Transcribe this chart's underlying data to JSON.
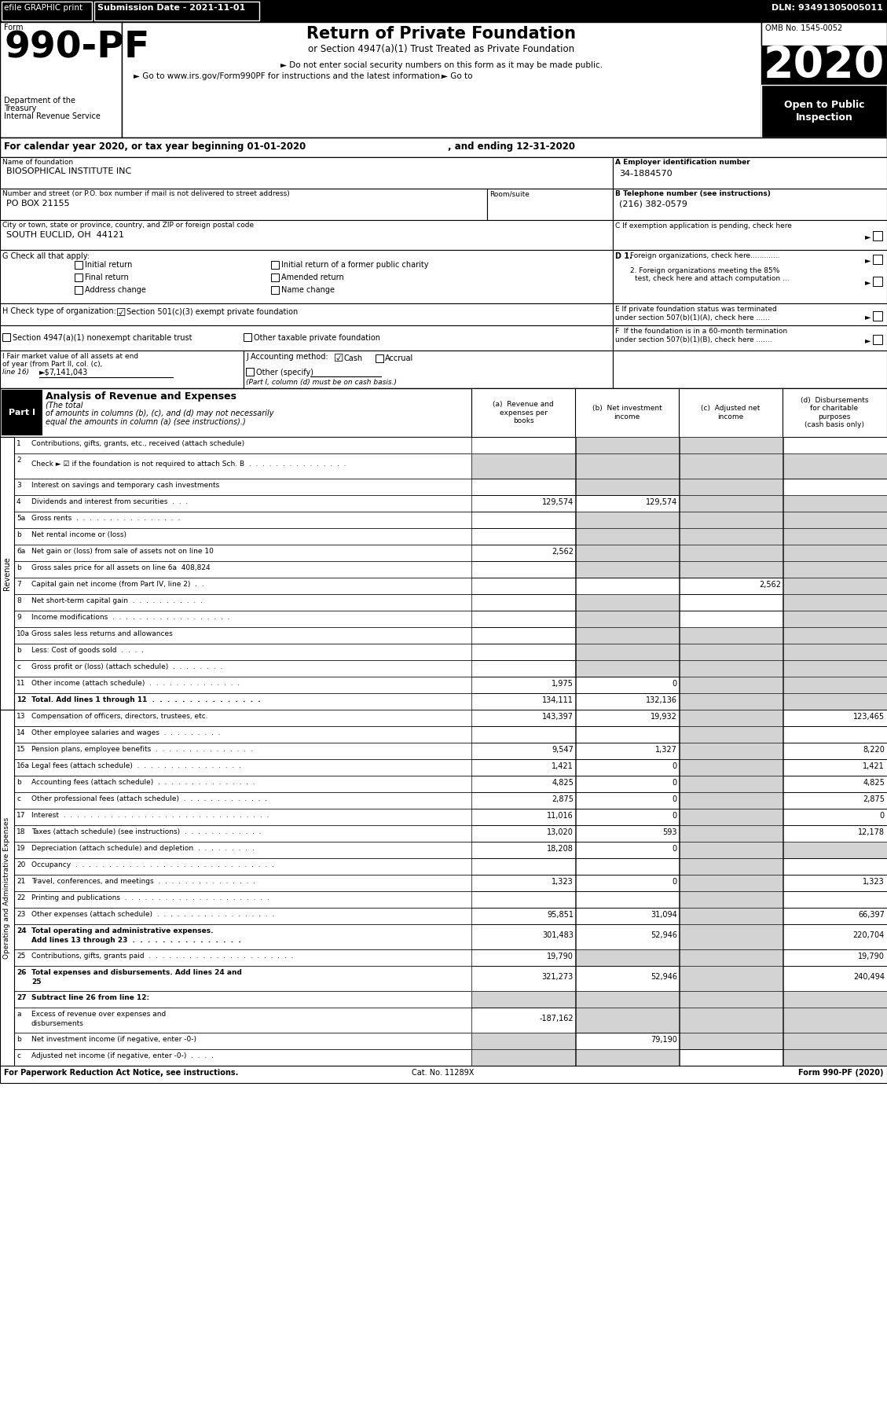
{
  "title": "Return of Private Foundation",
  "subtitle": "or Section 4947(a)(1) Trust Treated as Private Foundation",
  "form_number": "990-PF",
  "year": "2020",
  "omb": "OMB No. 1545-0052",
  "dln": "DLN: 93491305005011",
  "submission_date": "Submission Date - 2021-11-01",
  "efile_text": "efile GRAPHIC print",
  "dept1": "Department of the",
  "dept2": "Treasury",
  "dept3": "Internal Revenue Service",
  "bullet1": "► Do not enter social security numbers on this form as it may be made public.",
  "bullet2": "► Go to www.irs.gov/Form990PF for instructions and the latest information.",
  "url_text": "www.irs.gov/Form990PF",
  "open_text": "Open to Public\nInspection",
  "cal_year": "For calendar year 2020, or tax year beginning 01-01-2020",
  "cal_ending": ", and ending 12-31-2020",
  "foundation_name_label": "Name of foundation",
  "foundation_name": "BIOSOPHICAL INSTITUTE INC",
  "ein_label": "A Employer identification number",
  "ein": "34-1884570",
  "address_label": "Number and street (or P.O. box number if mail is not delivered to street address)",
  "address": "PO BOX 21155",
  "room_label": "Room/suite",
  "phone_label": "B Telephone number (see instructions)",
  "phone": "(216) 382-0579",
  "city_label": "City or town, state or province, country, and ZIP or foreign postal code",
  "city": "SOUTH EUCLID, OH  44121",
  "h_opt1": "Section 501(c)(3) exempt private foundation",
  "h_opt2": "Section 4947(a)(1) nonexempt charitable trust",
  "h_opt3": "Other taxable private foundation",
  "i_value": "7,141,043",
  "j_note": "(Part I, column (d) must be on cash basis.)",
  "f_label": "F  If the foundation is in a 60-month termination under section 507(b)(1)(B), check here .......",
  "footer_left": "For Paperwork Reduction Act Notice, see instructions.",
  "footer_cat": "Cat. No. 11289X",
  "footer_right": "Form 990-PF (2020)",
  "shade_gray": "#d3d3d3",
  "rows": [
    {
      "num": "1",
      "label": "Contributions, gifts, grants, etc., received (attach schedule)",
      "a": "",
      "b": "",
      "c": "",
      "d": "",
      "shade_b": true,
      "shade_c": true
    },
    {
      "num": "2",
      "label": "Check ► ☑ if the foundation is not required to attach Sch. B  .  .  .  .  .  .  .  .  .  .  .  .  .  .  .",
      "a": "",
      "b": "",
      "c": "",
      "d": "",
      "shade_a": true,
      "shade_b": true,
      "shade_c": true,
      "shade_d": true,
      "tall": true
    },
    {
      "num": "3",
      "label": "Interest on savings and temporary cash investments",
      "a": "",
      "b": "",
      "c": "",
      "d": "",
      "shade_b": true,
      "shade_c": true
    },
    {
      "num": "4",
      "label": "Dividends and interest from securities  .  .  .",
      "a": "129,574",
      "b": "129,574",
      "c": "",
      "d": "",
      "shade_c": true,
      "shade_d": true
    },
    {
      "num": "5a",
      "label": "Gross rents  .  .  .  .  .  .  .  .  .  .  .  .  .  .  .  .",
      "a": "",
      "b": "",
      "c": "",
      "d": "",
      "shade_b": true,
      "shade_c": true,
      "shade_d": true
    },
    {
      "num": "b",
      "label": "Net rental income or (loss)",
      "a": "",
      "b": "",
      "c": "",
      "d": "",
      "shade_b": true,
      "shade_c": true,
      "shade_d": true,
      "line_a": true
    },
    {
      "num": "6a",
      "label": "Net gain or (loss) from sale of assets not on line 10",
      "a": "2,562",
      "b": "",
      "c": "",
      "d": "",
      "shade_b": true,
      "shade_c": true,
      "shade_d": true
    },
    {
      "num": "b",
      "label": "Gross sales price for all assets on line 6a  408,824",
      "a": "",
      "b": "",
      "c": "",
      "d": "",
      "shade_b": true,
      "shade_c": true,
      "shade_d": true
    },
    {
      "num": "7",
      "label": "Capital gain net income (from Part IV, line 2)  .  .",
      "a": "",
      "b": "",
      "c": "2,562",
      "d": "",
      "shade_d": true
    },
    {
      "num": "8",
      "label": "Net short-term capital gain  .  .  .  .  .  .  .  .  .  .  .",
      "a": "",
      "b": "",
      "c": "",
      "d": "",
      "shade_b": true,
      "shade_d": true
    },
    {
      "num": "9",
      "label": "Income modifications  .  .  .  .  .  .  .  .  .  .  .  .  .  .  .  .  .  .",
      "a": "",
      "b": "",
      "c": "",
      "d": "",
      "shade_b": true,
      "shade_d": true
    },
    {
      "num": "10a",
      "label": "Gross sales less returns and allowances",
      "a": "",
      "b": "",
      "c": "",
      "d": "",
      "shade_b": true,
      "shade_c": true,
      "shade_d": true,
      "line_a": true
    },
    {
      "num": "b",
      "label": "Less: Cost of goods sold  .  .  .  .",
      "a": "",
      "b": "",
      "c": "",
      "d": "",
      "shade_b": true,
      "shade_c": true,
      "shade_d": true,
      "line_a": true
    },
    {
      "num": "c",
      "label": "Gross profit or (loss) (attach schedule)  .  .  .  .  .  .  .  .",
      "a": "",
      "b": "",
      "c": "",
      "d": "",
      "shade_b": true,
      "shade_c": true,
      "shade_d": true
    },
    {
      "num": "11",
      "label": "Other income (attach schedule)  .  .  .  .  .  .  .  .  .  .  .  .  .  .",
      "a": "1,975",
      "b": "0",
      "c": "",
      "d": "",
      "shade_c": true,
      "shade_d": true
    },
    {
      "num": "12",
      "label": "Total. Add lines 1 through 11  .  .  .  .  .  .  .  .  .  .  .  .  .  .  .",
      "a": "134,111",
      "b": "132,136",
      "c": "",
      "d": "",
      "bold": true,
      "shade_c": true,
      "shade_d": true
    },
    {
      "num": "13",
      "label": "Compensation of officers, directors, trustees, etc.",
      "a": "143,397",
      "b": "19,932",
      "c": "",
      "d": "123,465",
      "shade_c": true
    },
    {
      "num": "14",
      "label": "Other employee salaries and wages  .  .  .  .  .  .  .  .  .",
      "a": "",
      "b": "",
      "c": "",
      "d": "",
      "shade_c": true
    },
    {
      "num": "15",
      "label": "Pension plans, employee benefits  .  .  .  .  .  .  .  .  .  .  .  .  .  .  .",
      "a": "9,547",
      "b": "1,327",
      "c": "",
      "d": "8,220",
      "shade_c": true
    },
    {
      "num": "16a",
      "label": "Legal fees (attach schedule)  .  .  .  .  .  .  .  .  .  .  .  .  .  .  .  .",
      "a": "1,421",
      "b": "0",
      "c": "",
      "d": "1,421",
      "shade_c": true
    },
    {
      "num": "b",
      "label": "Accounting fees (attach schedule)  .  .  .  .  .  .  .  .  .  .  .  .  .  .  .",
      "a": "4,825",
      "b": "0",
      "c": "",
      "d": "4,825",
      "shade_c": true
    },
    {
      "num": "c",
      "label": "Other professional fees (attach schedule)  .  .  .  .  .  .  .  .  .  .  .  .  .",
      "a": "2,875",
      "b": "0",
      "c": "",
      "d": "2,875",
      "shade_c": true
    },
    {
      "num": "17",
      "label": "Interest  .  .  .  .  .  .  .  .  .  .  .  .  .  .  .  .  .  .  .  .  .  .  .  .  .  .  .  .  .  .  .",
      "a": "11,016",
      "b": "0",
      "c": "",
      "d": "0",
      "shade_c": true
    },
    {
      "num": "18",
      "label": "Taxes (attach schedule) (see instructions)  .  .  .  .  .  .  .  .  .  .  .  .",
      "a": "13,020",
      "b": "593",
      "c": "",
      "d": "12,178",
      "shade_c": true
    },
    {
      "num": "19",
      "label": "Depreciation (attach schedule) and depletion  .  .  .  .  .  .  .  .  .",
      "a": "18,208",
      "b": "0",
      "c": "",
      "d": "",
      "shade_c": true,
      "shade_d": true
    },
    {
      "num": "20",
      "label": "Occupancy  .  .  .  .  .  .  .  .  .  .  .  .  .  .  .  .  .  .  .  .  .  .  .  .  .  .  .  .  .  .",
      "a": "",
      "b": "",
      "c": "",
      "d": "",
      "shade_c": true
    },
    {
      "num": "21",
      "label": "Travel, conferences, and meetings  .  .  .  .  .  .  .  .  .  .  .  .  .  .  .",
      "a": "1,323",
      "b": "0",
      "c": "",
      "d": "1,323",
      "shade_c": true
    },
    {
      "num": "22",
      "label": "Printing and publications  .  .  .  .  .  .  .  .  .  .  .  .  .  .  .  .  .  .  .  .  .  .",
      "a": "",
      "b": "",
      "c": "",
      "d": "",
      "shade_c": true
    },
    {
      "num": "23",
      "label": "Other expenses (attach schedule)  .  .  .  .  .  .  .  .  .  .  .  .  .  .  .  .  .  .",
      "a": "95,851",
      "b": "31,094",
      "c": "",
      "d": "66,397",
      "shade_c": true
    },
    {
      "num": "24",
      "label": "Total operating and administrative expenses.\nAdd lines 13 through 23  .  .  .  .  .  .  .  .  .  .  .  .  .  .  .",
      "a": "301,483",
      "b": "52,946",
      "c": "",
      "d": "220,704",
      "bold": true,
      "shade_c": true,
      "tall": true
    },
    {
      "num": "25",
      "label": "Contributions, gifts, grants paid  .  .  .  .  .  .  .  .  .  .  .  .  .  .  .  .  .  .  .  .  .  .",
      "a": "19,790",
      "b": "",
      "c": "",
      "d": "19,790",
      "shade_b": true,
      "shade_c": true
    },
    {
      "num": "26",
      "label": "Total expenses and disbursements. Add lines 24 and\n25",
      "a": "321,273",
      "b": "52,946",
      "c": "",
      "d": "240,494",
      "bold": true,
      "shade_c": true,
      "tall": true
    },
    {
      "num": "27",
      "label": "Subtract line 26 from line 12:",
      "a": "",
      "b": "",
      "c": "",
      "d": "",
      "bold": true,
      "shade_a": true,
      "shade_b": true,
      "shade_c": true,
      "shade_d": true
    },
    {
      "num": "a",
      "label": "Excess of revenue over expenses and\ndisbursements",
      "a": "-187,162",
      "b": "",
      "c": "",
      "d": "",
      "shade_b": true,
      "shade_c": true,
      "shade_d": true,
      "tall": true
    },
    {
      "num": "b",
      "label": "Net investment income (if negative, enter -0-)",
      "a": "",
      "b": "79,190",
      "c": "",
      "d": "",
      "shade_a": true,
      "shade_c": true,
      "shade_d": true
    },
    {
      "num": "c",
      "label": "Adjusted net income (if negative, enter -0-)  .  .  .  .",
      "a": "",
      "b": "",
      "c": "",
      "d": "",
      "shade_a": true,
      "shade_b": true,
      "shade_d": true
    }
  ]
}
